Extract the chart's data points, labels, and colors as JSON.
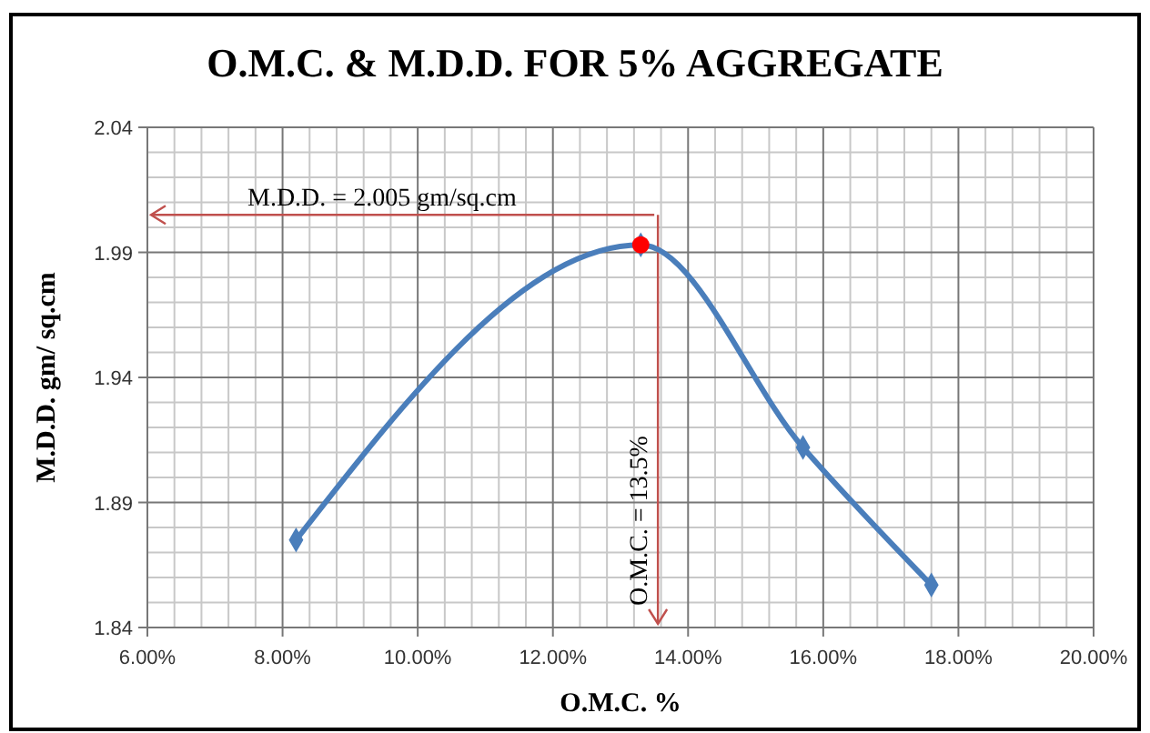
{
  "chart_data": {
    "type": "line",
    "title": "O.M.C. & M.D.D. FOR 5% AGGREGATE",
    "xlabel": "O.M.C. %",
    "ylabel": "M.D.D. gm/ sq.cm",
    "series": [
      {
        "type": "line",
        "color": "#4a7ebb",
        "x": [
          8.2,
          13.3,
          15.7,
          17.6
        ],
        "values": [
          1.875,
          1.993,
          1.912,
          1.857
        ],
        "marker": "diamond"
      },
      {
        "type": "scatter",
        "color": "#ff0000",
        "x": [
          13.3
        ],
        "values": [
          1.993
        ],
        "marker": "circle"
      }
    ],
    "xlim": [
      6,
      20
    ],
    "xticks": [
      {
        "value": 6,
        "label": "6.00%"
      },
      {
        "value": 8,
        "label": "8.00%"
      },
      {
        "value": 10,
        "label": "10.00%"
      },
      {
        "value": 12,
        "label": "12.00%"
      },
      {
        "value": 14,
        "label": "14.00%"
      },
      {
        "value": 16,
        "label": "16.00%"
      },
      {
        "value": 18,
        "label": "18.00%"
      },
      {
        "value": 20,
        "label": "20.00%"
      }
    ],
    "ylim": [
      1.84,
      2.04
    ],
    "yticks": [
      1.84,
      1.89,
      1.94,
      1.99,
      2.04
    ],
    "grid": true,
    "ref_lines": [
      {
        "axis": "y",
        "value": 2.005,
        "label": "M.D.D. = 2.005 gm/sq.cm",
        "color": "#c0504d"
      },
      {
        "axis": "x",
        "value": 13.5,
        "label": "O.M.C. = 13.5%",
        "color": "#c0504d"
      }
    ]
  }
}
